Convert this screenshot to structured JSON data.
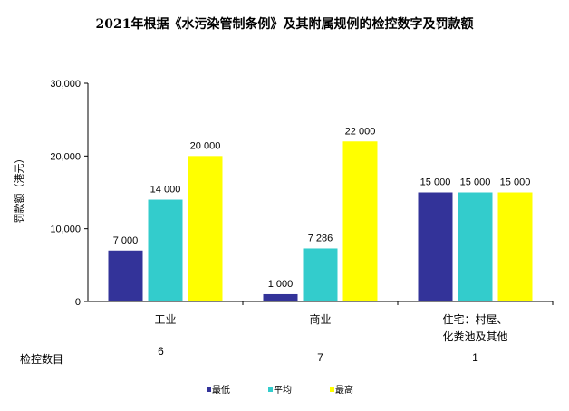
{
  "chart_data": {
    "type": "bar",
    "title": "2021年根据《水污染管制条例》及其附属规例的检控数字及罚款额",
    "ylabel": "罚款额（港元）",
    "xlabel": "",
    "ylim": [
      0,
      30000
    ],
    "yticks": [
      0,
      10000,
      20000,
      30000
    ],
    "ytick_labels": [
      "0",
      "10,000",
      "20,000",
      "30,000"
    ],
    "categories": [
      "工业",
      "商业",
      "住宅：村屋、化粪池及其他"
    ],
    "category_lines": [
      [
        "工业"
      ],
      [
        "商业"
      ],
      [
        "住宅：村屋、",
        "化粪池及其他"
      ]
    ],
    "series": [
      {
        "name": "最低",
        "color": "#333399",
        "values": [
          7000,
          1000,
          15000
        ],
        "labels": [
          "7 000",
          "1 000",
          "15 000"
        ]
      },
      {
        "name": "平均",
        "color": "#33CCCC",
        "values": [
          14000,
          7286,
          15000
        ],
        "labels": [
          "14 000",
          "7 286",
          "15 000"
        ]
      },
      {
        "name": "最高",
        "color": "#FFFF00",
        "values": [
          20000,
          22000,
          15000
        ],
        "labels": [
          "20 000",
          "22 000",
          "15 000"
        ]
      }
    ],
    "legend_position": "bottom",
    "prosecutions": {
      "label": "检控数目",
      "values": [
        "6",
        "7",
        "1"
      ]
    }
  }
}
